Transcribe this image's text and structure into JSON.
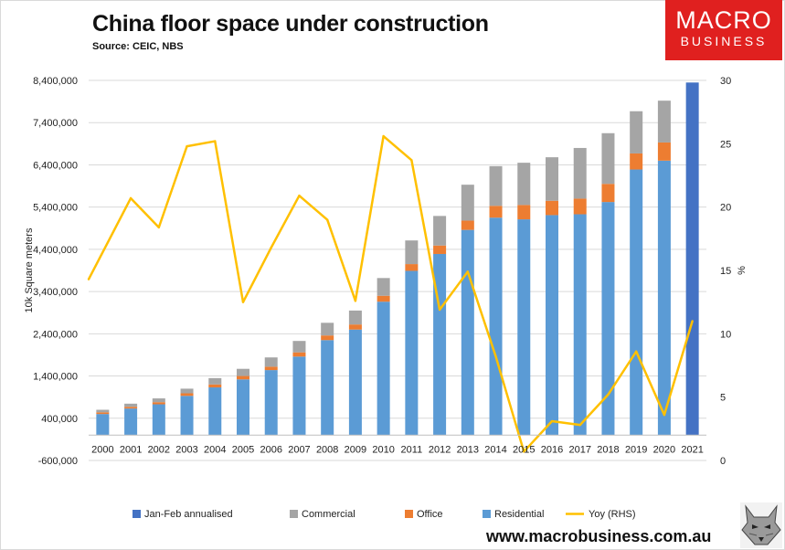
{
  "header": {
    "title": "China floor space under construction",
    "subtitle": "Source: CEIC, NBS"
  },
  "logo": {
    "line1": "MACRO",
    "line2": "BUSINESS"
  },
  "footer": {
    "website": "www.macrobusiness.com.au"
  },
  "colors": {
    "annualised": "#4472c4",
    "commercial": "#a5a5a5",
    "office": "#ed7d31",
    "residential": "#5b9bd5",
    "yoy": "#ffc000",
    "brand": "#e0201f"
  },
  "chart_data": {
    "type": "bar",
    "stacked": true,
    "ylabel": "10k Square meters",
    "y2label": "%",
    "ylim": [
      -600000,
      8400000
    ],
    "y2lim": [
      0,
      30
    ],
    "yticks": [
      "8,400,000",
      "7,400,000",
      "6,400,000",
      "5,400,000",
      "4,400,000",
      "3,400,000",
      "2,400,000",
      "1,400,000",
      "400,000",
      "-600,000"
    ],
    "y2ticks": [
      "30",
      "25",
      "20",
      "15",
      "10",
      "5",
      "0"
    ],
    "categories": [
      "2000",
      "2001",
      "2002",
      "2003",
      "2004",
      "2005",
      "2006",
      "2007",
      "2008",
      "2009",
      "2010",
      "2011",
      "2012",
      "2013",
      "2014",
      "2015",
      "2016",
      "2017",
      "2018",
      "2019",
      "2020",
      "2021"
    ],
    "legend_position": "bottom",
    "series": [
      {
        "name": "Jan-Feb annualised",
        "kind": "bar",
        "values": [
          null,
          null,
          null,
          null,
          null,
          null,
          null,
          null,
          null,
          null,
          null,
          null,
          null,
          null,
          null,
          null,
          null,
          null,
          null,
          null,
          null,
          8350000
        ]
      },
      {
        "name": "Commercial",
        "kind": "bar",
        "values": [
          60000,
          75000,
          90000,
          110000,
          150000,
          170000,
          220000,
          270000,
          300000,
          330000,
          420000,
          560000,
          700000,
          850000,
          940000,
          1000000,
          1030000,
          1200000,
          1200000,
          1000000,
          990000,
          null
        ]
      },
      {
        "name": "Office",
        "kind": "bar",
        "values": [
          40000,
          40000,
          50000,
          60000,
          70000,
          80000,
          80000,
          100000,
          110000,
          120000,
          140000,
          160000,
          200000,
          220000,
          280000,
          340000,
          340000,
          370000,
          430000,
          380000,
          430000,
          null
        ]
      },
      {
        "name": "Residential",
        "kind": "bar",
        "values": [
          500000,
          630000,
          730000,
          930000,
          1130000,
          1320000,
          1540000,
          1860000,
          2250000,
          2500000,
          3160000,
          3890000,
          4290000,
          4860000,
          5150000,
          5110000,
          5210000,
          5230000,
          5520000,
          6290000,
          6500000,
          null
        ]
      },
      {
        "name": "Yoy (RHS)",
        "kind": "line",
        "axis": "right",
        "values": [
          14.3,
          20.7,
          18.4,
          24.8,
          25.2,
          12.5,
          16.8,
          20.9,
          19.0,
          12.6,
          25.6,
          23.7,
          11.9,
          14.9,
          8.2,
          0.7,
          3.1,
          2.8,
          5.2,
          8.6,
          3.6,
          11.0
        ]
      }
    ]
  }
}
